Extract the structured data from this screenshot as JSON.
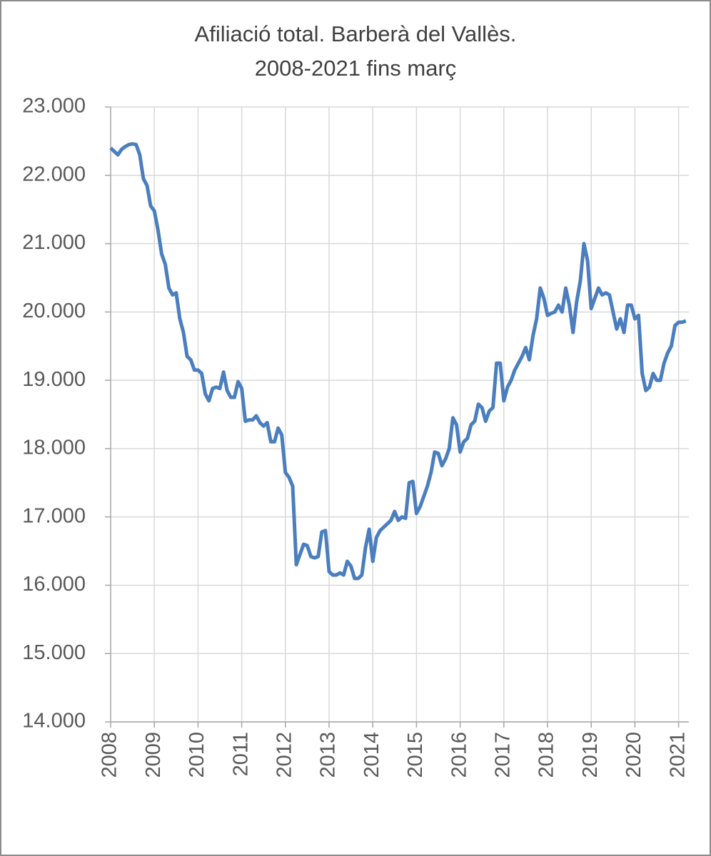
{
  "chart_data": {
    "type": "line",
    "title": "Afiliació total. Barberà del Vallès.",
    "subtitle": "2008-2021 fins març",
    "categories": [
      "2008",
      null,
      null,
      null,
      null,
      null,
      null,
      null,
      null,
      null,
      null,
      null,
      "2009",
      null,
      null,
      null,
      null,
      null,
      null,
      null,
      null,
      null,
      null,
      null,
      "2010",
      null,
      null,
      null,
      null,
      null,
      null,
      null,
      null,
      null,
      null,
      null,
      "2011",
      null,
      null,
      null,
      null,
      null,
      null,
      null,
      null,
      null,
      null,
      null,
      "2012",
      null,
      null,
      null,
      null,
      null,
      null,
      null,
      null,
      null,
      null,
      null,
      "2013",
      null,
      null,
      null,
      null,
      null,
      null,
      null,
      null,
      null,
      null,
      null,
      "2014",
      null,
      null,
      null,
      null,
      null,
      null,
      null,
      null,
      null,
      null,
      null,
      "2015",
      null,
      null,
      null,
      null,
      null,
      null,
      null,
      null,
      null,
      null,
      null,
      "2016",
      null,
      null,
      null,
      null,
      null,
      null,
      null,
      null,
      null,
      null,
      null,
      "2017",
      null,
      null,
      null,
      null,
      null,
      null,
      null,
      null,
      null,
      null,
      null,
      "2018",
      null,
      null,
      null,
      null,
      null,
      null,
      null,
      null,
      null,
      null,
      null,
      "2019",
      null,
      null,
      null,
      null,
      null,
      null,
      null,
      null,
      null,
      null,
      null,
      "2020",
      null,
      null,
      null,
      null,
      null,
      null,
      null,
      null,
      null,
      null,
      null,
      "2021",
      null,
      null
    ],
    "series": [
      {
        "color": "#4a7ebf",
        "values": [
          22400,
          22350,
          22300,
          22380,
          22420,
          22450,
          22460,
          22450,
          22300,
          21950,
          21850,
          21550,
          21480,
          21200,
          20850,
          20700,
          20350,
          20250,
          20280,
          19900,
          19700,
          19350,
          19300,
          19150,
          19150,
          19100,
          18800,
          18700,
          18880,
          18900,
          18880,
          19120,
          18850,
          18750,
          18750,
          18980,
          18880,
          18400,
          18420,
          18420,
          18480,
          18380,
          18330,
          18380,
          18100,
          18100,
          18300,
          18200,
          17650,
          17580,
          17450,
          16300,
          16450,
          16600,
          16580,
          16420,
          16400,
          16420,
          16780,
          16800,
          16200,
          16150,
          16150,
          16180,
          16150,
          16350,
          16280,
          16100,
          16100,
          16150,
          16550,
          16820,
          16350,
          16700,
          16800,
          16850,
          16900,
          16950,
          17080,
          16950,
          17000,
          16980,
          17500,
          17520,
          17050,
          17150,
          17300,
          17450,
          17650,
          17950,
          17930,
          17750,
          17850,
          18000,
          18450,
          18350,
          17950,
          18100,
          18150,
          18350,
          18400,
          18650,
          18600,
          18400,
          18550,
          18600,
          19250,
          19250,
          18700,
          18900,
          19000,
          19150,
          19250,
          19350,
          19480,
          19300,
          19650,
          19900,
          20350,
          20200,
          19950,
          19980,
          20000,
          20100,
          20000,
          20350,
          20100,
          19700,
          20150,
          20450,
          21000,
          20750,
          20050,
          20200,
          20350,
          20250,
          20280,
          20250,
          20000,
          19750,
          19900,
          19700,
          20100,
          20100,
          19900,
          19950,
          19100,
          18850,
          18900,
          19100,
          19000,
          19000,
          19250,
          19400,
          19500,
          19800,
          19850,
          19850,
          19870
        ]
      }
    ],
    "ylim": [
      14000,
      23000
    ],
    "yticks": [
      {
        "value": 14000,
        "label": "14.000"
      },
      {
        "value": 15000,
        "label": "15.000"
      },
      {
        "value": 16000,
        "label": "16.000"
      },
      {
        "value": 17000,
        "label": "17.000"
      },
      {
        "value": 18000,
        "label": "18.000"
      },
      {
        "value": 19000,
        "label": "19.000"
      },
      {
        "value": 20000,
        "label": "20.000"
      },
      {
        "value": 21000,
        "label": "21.000"
      },
      {
        "value": 22000,
        "label": "22.000"
      },
      {
        "value": 23000,
        "label": "23.000"
      }
    ],
    "grid": true
  }
}
